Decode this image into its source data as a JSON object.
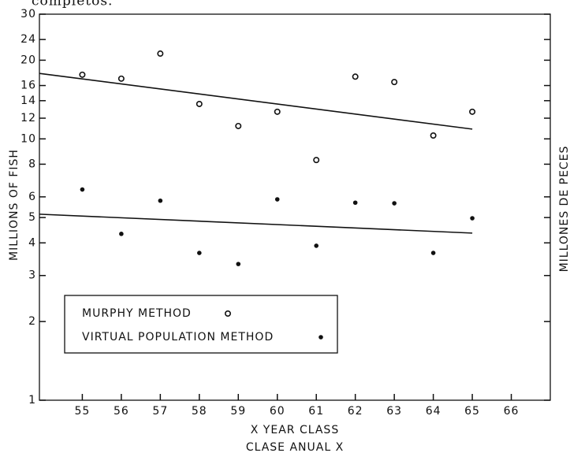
{
  "caption_fragment": "completos.",
  "chart_data": {
    "type": "scatter",
    "xlabel": "X YEAR CLASS",
    "xlabel2": "CLASE ANUAL X",
    "ylabel": "MILLIONS OF FISH",
    "y2label": "MILLONES DE PECES",
    "xlim": [
      53.9,
      67
    ],
    "xticks": [
      55,
      56,
      57,
      58,
      59,
      60,
      61,
      62,
      63,
      64,
      65,
      66
    ],
    "ylim": [
      1,
      30
    ],
    "yscale": "log",
    "yticks": [
      1,
      2,
      3,
      4,
      5,
      6,
      8,
      10,
      12,
      14,
      16,
      20,
      24,
      30
    ],
    "series": [
      {
        "name": "MURPHY METHOD",
        "marker": "open",
        "color": "#111",
        "x": [
          55,
          56,
          57,
          58,
          59,
          60,
          61,
          62,
          63,
          64,
          65
        ],
        "values": [
          17.6,
          17.0,
          21.2,
          13.6,
          11.2,
          12.7,
          8.3,
          17.3,
          16.5,
          10.3,
          12.7
        ]
      },
      {
        "name": "VIRTUAL POPULATION METHOD",
        "marker": "filled",
        "color": "#111",
        "x": [
          55,
          56,
          57,
          58,
          59,
          60,
          61,
          62,
          63,
          64,
          65
        ],
        "values": [
          6.4,
          4.33,
          5.8,
          3.66,
          3.32,
          5.87,
          3.9,
          5.7,
          5.67,
          3.66,
          4.97
        ]
      }
    ],
    "trend_lines": [
      {
        "x": [
          53.9,
          65
        ],
        "values": [
          17.8,
          10.9
        ]
      },
      {
        "x": [
          53.9,
          65
        ],
        "values": [
          5.15,
          4.36
        ]
      }
    ]
  }
}
